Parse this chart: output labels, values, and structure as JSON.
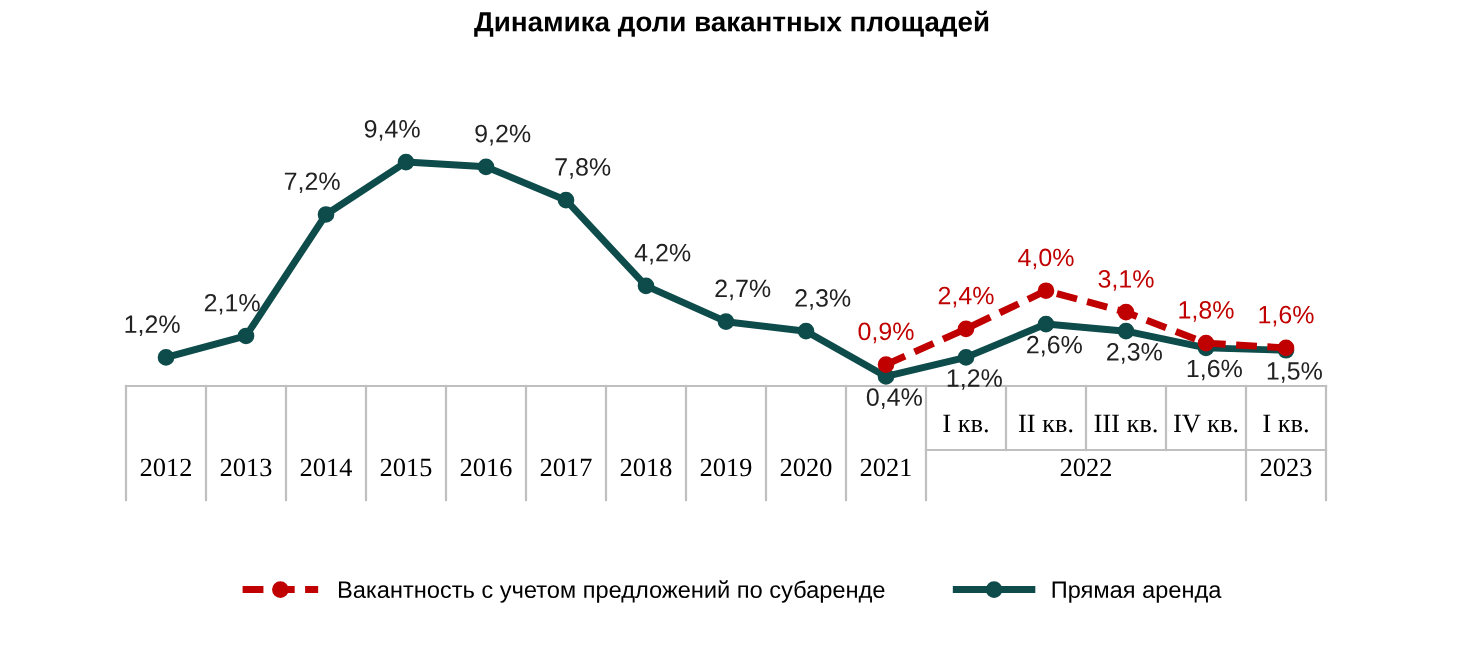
{
  "chart_data": {
    "type": "line",
    "title": "Динамика доли вакантных площадей",
    "categories": [
      "2012",
      "2013",
      "2014",
      "2015",
      "2016",
      "2017",
      "2018",
      "2019",
      "2020",
      "2021",
      "I кв.",
      "II кв.",
      "III кв.",
      "IV кв.",
      "I кв."
    ],
    "annotations": [
      "2022",
      "2023"
    ],
    "series": [
      {
        "name": "Вакантность с учетом предложений по субаренде",
        "color": "#c00000",
        "line_style": "dashed",
        "values": [
          null,
          null,
          null,
          null,
          null,
          null,
          null,
          null,
          null,
          0.9,
          2.4,
          4.0,
          3.1,
          1.8,
          1.6
        ],
        "value_labels": [
          null,
          null,
          null,
          null,
          null,
          null,
          null,
          null,
          null,
          "0,9%",
          "2,4%",
          "4,0%",
          "3,1%",
          "1,8%",
          "1,6%"
        ]
      },
      {
        "name": "Прямая аренда",
        "color": "#0e4b4b",
        "line_style": "solid",
        "values": [
          1.2,
          2.1,
          7.2,
          9.4,
          9.2,
          7.8,
          4.2,
          2.7,
          2.3,
          0.4,
          1.2,
          2.6,
          2.3,
          1.6,
          1.5
        ],
        "value_labels": [
          "1,2%",
          "2,1%",
          "7,2%",
          "9,4%",
          "9,2%",
          "7,8%",
          "4,2%",
          "2,7%",
          "2,3%",
          "0,4%",
          "1,2%",
          "2,6%",
          "2,3%",
          "1,6%",
          "1,5%"
        ]
      }
    ],
    "marker": "circle",
    "legend": "bottom"
  }
}
